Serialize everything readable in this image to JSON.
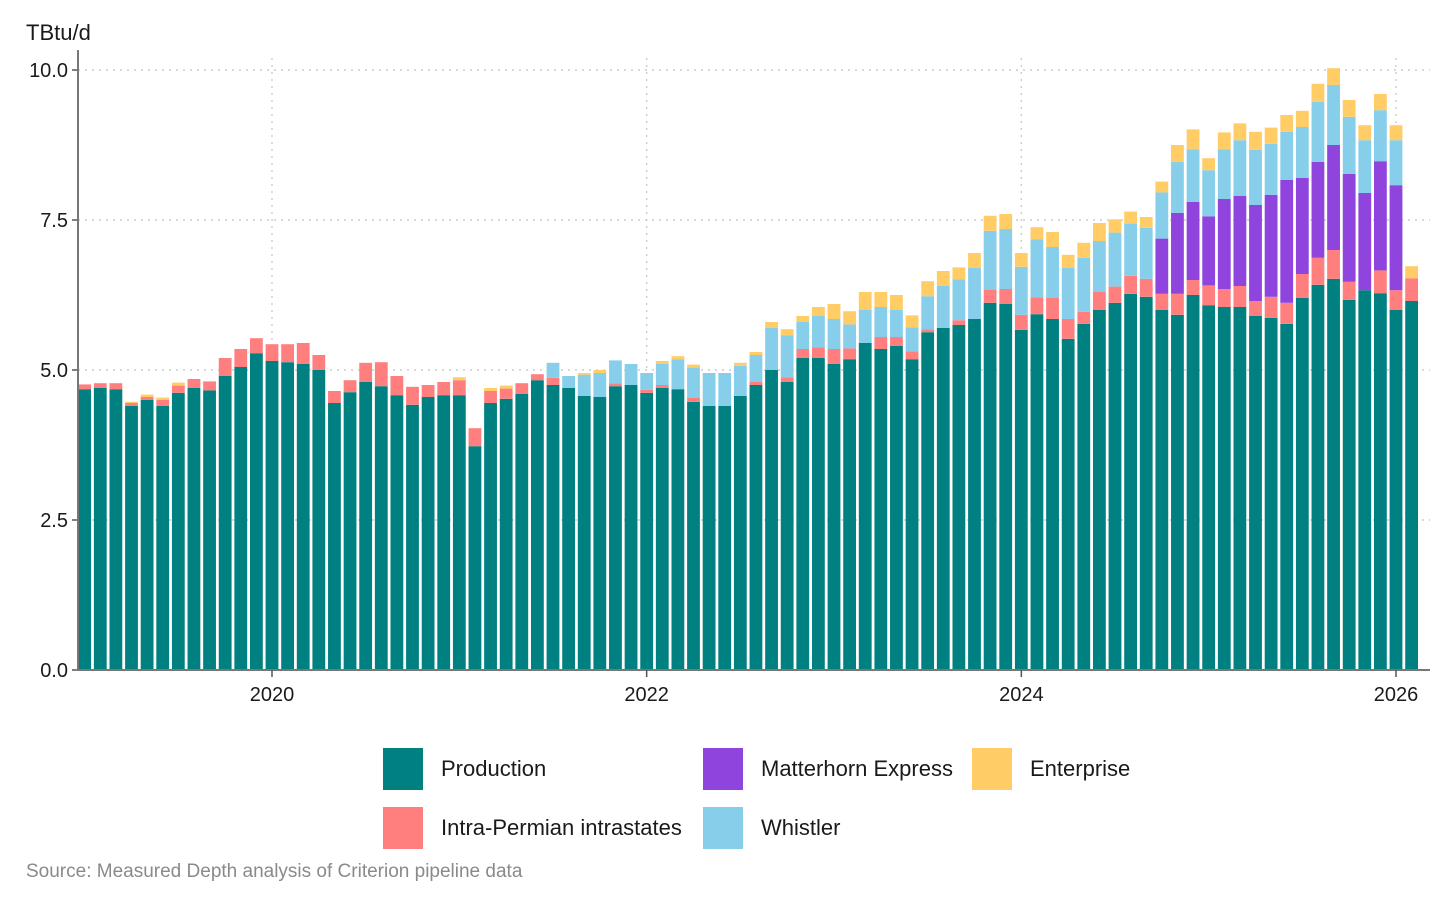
{
  "chart_data": {
    "type": "bar",
    "stacked": true,
    "title": "",
    "ylabel": "TBtu/d",
    "xlabel": "",
    "ylim": [
      0,
      10.2
    ],
    "yticks": [
      "0.0",
      "2.5",
      "5.0",
      "7.5",
      "10.0"
    ],
    "xticks": [
      "2020",
      "2022",
      "2024",
      "2026"
    ],
    "grid": true,
    "legend_position": "bottom",
    "x": [
      "2019-01",
      "2019-02",
      "2019-03",
      "2019-04",
      "2019-05",
      "2019-06",
      "2019-07",
      "2019-08",
      "2019-09",
      "2019-10",
      "2019-11",
      "2019-12",
      "2020-01",
      "2020-02",
      "2020-03",
      "2020-04",
      "2020-05",
      "2020-06",
      "2020-07",
      "2020-08",
      "2020-09",
      "2020-10",
      "2020-11",
      "2020-12",
      "2021-01",
      "2021-02",
      "2021-03",
      "2021-04",
      "2021-05",
      "2021-06",
      "2021-07",
      "2021-08",
      "2021-09",
      "2021-10",
      "2021-11",
      "2021-12",
      "2022-01",
      "2022-02",
      "2022-03",
      "2022-04",
      "2022-05",
      "2022-06",
      "2022-07",
      "2022-08",
      "2022-09",
      "2022-10",
      "2022-11",
      "2022-12",
      "2023-01",
      "2023-02",
      "2023-03",
      "2023-04",
      "2023-05",
      "2023-06",
      "2023-07",
      "2023-08",
      "2023-09",
      "2023-10",
      "2023-11",
      "2023-12",
      "2024-01",
      "2024-02",
      "2024-03",
      "2024-04",
      "2024-05",
      "2024-06",
      "2024-07",
      "2024-08",
      "2024-09",
      "2024-10",
      "2024-11",
      "2024-12",
      "2025-01",
      "2025-02",
      "2025-03",
      "2025-04",
      "2025-05",
      "2025-06",
      "2025-07",
      "2025-08",
      "2025-09",
      "2025-10",
      "2025-11",
      "2025-12",
      "2026-01",
      "2026-02"
    ],
    "series": [
      {
        "name": "Production",
        "color": "#008080",
        "values": [
          4.68,
          4.7,
          4.68,
          4.4,
          4.5,
          4.4,
          4.62,
          4.7,
          4.66,
          4.9,
          5.05,
          5.28,
          5.15,
          5.13,
          5.1,
          5.0,
          4.45,
          4.63,
          4.8,
          4.73,
          4.58,
          4.42,
          4.55,
          4.58,
          4.58,
          3.73,
          4.45,
          4.52,
          4.6,
          4.83,
          4.75,
          4.7,
          4.57,
          4.55,
          4.73,
          4.75,
          4.62,
          4.7,
          4.68,
          4.47,
          4.4,
          4.4,
          4.57,
          4.75,
          5.0,
          4.8,
          5.2,
          5.2,
          5.1,
          5.18,
          5.45,
          5.35,
          5.4,
          5.18,
          5.63,
          5.7,
          5.75,
          5.85,
          6.12,
          6.1,
          5.67,
          5.93,
          5.85,
          5.52,
          5.77,
          6.0,
          6.12,
          6.27,
          6.22,
          6.0,
          5.92,
          6.25,
          6.08,
          6.05,
          6.05,
          5.9,
          5.87,
          5.77,
          6.2,
          6.42,
          6.52,
          6.17,
          6.33,
          6.28,
          6.0,
          6.15
        ]
      },
      {
        "name": "Intra-Permian intrastates",
        "color": "#ff7f7f",
        "values": [
          0.08,
          0.08,
          0.1,
          0.05,
          0.05,
          0.1,
          0.12,
          0.15,
          0.15,
          0.3,
          0.3,
          0.25,
          0.28,
          0.3,
          0.35,
          0.25,
          0.2,
          0.2,
          0.32,
          0.4,
          0.32,
          0.3,
          0.2,
          0.22,
          0.25,
          0.3,
          0.2,
          0.17,
          0.18,
          0.1,
          0.12,
          0.0,
          0.0,
          0.0,
          0.05,
          0.0,
          0.05,
          0.05,
          0.0,
          0.07,
          0.0,
          0.0,
          0.0,
          0.05,
          0.0,
          0.08,
          0.15,
          0.18,
          0.25,
          0.18,
          0.0,
          0.2,
          0.15,
          0.13,
          0.05,
          0.0,
          0.08,
          0.0,
          0.22,
          0.25,
          0.25,
          0.28,
          0.35,
          0.33,
          0.2,
          0.3,
          0.27,
          0.3,
          0.3,
          0.27,
          0.35,
          0.25,
          0.33,
          0.3,
          0.35,
          0.25,
          0.35,
          0.35,
          0.4,
          0.45,
          0.48,
          0.3,
          0.0,
          0.38,
          0.33,
          0.38
        ]
      },
      {
        "name": "Matterhorn Express",
        "color": "#8e44dd",
        "values": [
          0,
          0,
          0,
          0,
          0,
          0,
          0,
          0,
          0,
          0,
          0,
          0,
          0,
          0,
          0,
          0,
          0,
          0,
          0,
          0,
          0,
          0,
          0,
          0,
          0,
          0,
          0,
          0,
          0,
          0,
          0,
          0,
          0,
          0,
          0,
          0,
          0,
          0,
          0,
          0,
          0,
          0,
          0,
          0,
          0,
          0,
          0,
          0,
          0,
          0,
          0,
          0,
          0,
          0,
          0,
          0,
          0,
          0,
          0,
          0,
          0,
          0,
          0,
          0,
          0,
          0,
          0,
          0,
          0,
          0.0,
          0.0,
          0.0,
          0.0,
          0.0,
          0.0,
          0.0,
          0.0,
          0.0,
          0.0,
          0.0,
          0.0,
          0.0,
          0.0,
          0.0,
          0.0,
          0.0
        ]
      },
      {
        "name": "Whistler",
        "color": "#87ceeb",
        "values": [
          0,
          0,
          0,
          0,
          0,
          0,
          0,
          0,
          0,
          0,
          0,
          0,
          0,
          0,
          0,
          0,
          0,
          0,
          0,
          0,
          0,
          0,
          0,
          0,
          0,
          0,
          0,
          0,
          0,
          0,
          0.25,
          0.2,
          0.35,
          0.4,
          0.38,
          0.35,
          0.28,
          0.35,
          0.5,
          0.5,
          0.55,
          0.55,
          0.5,
          0.45,
          0.7,
          0.7,
          0.45,
          0.52,
          0.5,
          0.4,
          0.55,
          0.5,
          0.45,
          0.4,
          0.55,
          0.7,
          0.68,
          0.85,
          0.98,
          1.0,
          0.8,
          0.97,
          0.85,
          0.85,
          0.9,
          0.85,
          0.9,
          0.87,
          0.85,
          0.0,
          0.0,
          0.0,
          0.0,
          0.0,
          0.0,
          0.0,
          0.0,
          0.0,
          0.0,
          0.0,
          0.0,
          0.0,
          0.0,
          0.0,
          0.0,
          0.0
        ]
      },
      {
        "name": "Enterprise",
        "color": "#ffcc66",
        "values": [
          0,
          0,
          0,
          0.02,
          0.04,
          0.04,
          0.05,
          0,
          0,
          0,
          0,
          0,
          0,
          0,
          0,
          0,
          0,
          0,
          0,
          0,
          0,
          0,
          0,
          0,
          0.05,
          0,
          0.05,
          0.05,
          0,
          0,
          0,
          0,
          0.03,
          0.05,
          0,
          0,
          0,
          0.05,
          0.05,
          0.05,
          0,
          0,
          0.05,
          0.05,
          0.1,
          0.1,
          0.1,
          0.15,
          0.25,
          0.22,
          0.3,
          0.25,
          0.25,
          0.2,
          0.25,
          0.25,
          0.2,
          0.25,
          0.25,
          0.25,
          0.23,
          0.2,
          0.25,
          0.22,
          0.25,
          0.3,
          0.22,
          0.2,
          0.18,
          0.18,
          0.28,
          0.33,
          0.2,
          0.28,
          0.28,
          0.3,
          0.27,
          0.28,
          0.27,
          0.3,
          0.28,
          0.28,
          0.25,
          0.27,
          0.25,
          0.2
        ]
      }
    ],
    "note": "Matterhorn Express and Whistler from Oct 2024 listed below",
    "series_2024on": {
      "Matterhorn Express": [
        0.92,
        1.35,
        1.3,
        1.15,
        1.5,
        1.5,
        1.6,
        1.7,
        2.05,
        1.6,
        1.6,
        1.75,
        1.8,
        1.62,
        1.82,
        1.75
      ],
      "Whistler": [
        0.77,
        0.85,
        0.88,
        0.77,
        0.83,
        0.93,
        0.92,
        0.85,
        0.8,
        0.85,
        1.0,
        1.0,
        0.95,
        0.88,
        0.85,
        0.75
      ]
    }
  },
  "source": "Source: Measured Depth analysis of Criterion pipeline data",
  "legend": [
    {
      "label": "Production",
      "color": "#008080"
    },
    {
      "label": "Matterhorn Express",
      "color": "#8e44dd"
    },
    {
      "label": "Enterprise",
      "color": "#ffcc66"
    },
    {
      "label": "Intra-Permian intrastates",
      "color": "#ff7f7f"
    },
    {
      "label": "Whistler",
      "color": "#87ceeb"
    }
  ]
}
